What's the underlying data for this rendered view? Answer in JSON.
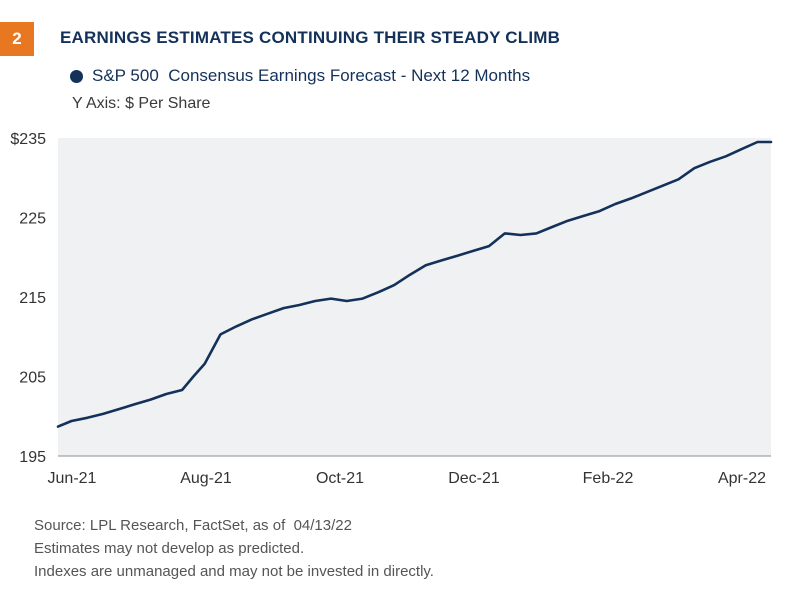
{
  "figure_number": "2",
  "title": "EARNINGS ESTIMATES CONTINUING THEIR STEADY CLIMB",
  "axis_note": "Y Axis: $ Per Share",
  "footnotes": [
    "Source: LPL Research, FactSet, as of  04/13/22",
    "Estimates may not develop as predicted.",
    "Indexes are unmanaged and may not be invested in directly."
  ],
  "colors": {
    "accent": "#e87722",
    "navy": "#14315a",
    "plot_bg": "#f0f1f3"
  },
  "chart_data": {
    "type": "line",
    "title": "EARNINGS ESTIMATES CONTINUING THEIR STEADY CLIMB",
    "ylabel": "$ Per Share",
    "ylim": [
      195,
      235
    ],
    "yticks": [
      195,
      205,
      215,
      225,
      235
    ],
    "ytick_labels": [
      "195",
      "205",
      "215",
      "225",
      "$235"
    ],
    "xticks": [
      "Jun-21",
      "Aug-21",
      "Oct-21",
      "Dec-21",
      "Feb-22",
      "Apr-22"
    ],
    "xrange": [
      "2021-06-01",
      "2022-04-13"
    ],
    "grid": false,
    "legend": "top-left",
    "series": [
      {
        "name": "S&P 500  Consensus Earnings Forecast - Next 12 Months",
        "color": "#14315a",
        "points": [
          [
            "2021-06-01",
            198.7
          ],
          [
            "2021-06-07",
            199.4
          ],
          [
            "2021-06-14",
            199.8
          ],
          [
            "2021-06-21",
            200.3
          ],
          [
            "2021-06-28",
            200.9
          ],
          [
            "2021-07-05",
            201.5
          ],
          [
            "2021-07-12",
            202.1
          ],
          [
            "2021-07-19",
            202.8
          ],
          [
            "2021-07-26",
            203.3
          ],
          [
            "2021-07-31",
            205.0
          ],
          [
            "2021-08-05",
            206.6
          ],
          [
            "2021-08-12",
            210.3
          ],
          [
            "2021-08-19",
            211.3
          ],
          [
            "2021-08-26",
            212.2
          ],
          [
            "2021-09-02",
            212.9
          ],
          [
            "2021-09-09",
            213.6
          ],
          [
            "2021-09-16",
            214.0
          ],
          [
            "2021-09-23",
            214.5
          ],
          [
            "2021-09-30",
            214.8
          ],
          [
            "2021-10-07",
            214.5
          ],
          [
            "2021-10-14",
            214.8
          ],
          [
            "2021-10-21",
            215.6
          ],
          [
            "2021-10-28",
            216.5
          ],
          [
            "2021-11-04",
            217.8
          ],
          [
            "2021-11-11",
            219.0
          ],
          [
            "2021-11-18",
            219.6
          ],
          [
            "2021-11-25",
            220.2
          ],
          [
            "2021-12-02",
            220.8
          ],
          [
            "2021-12-09",
            221.4
          ],
          [
            "2021-12-16",
            223.0
          ],
          [
            "2021-12-23",
            222.8
          ],
          [
            "2021-12-30",
            223.0
          ],
          [
            "2022-01-06",
            223.8
          ],
          [
            "2022-01-13",
            224.6
          ],
          [
            "2022-01-20",
            225.2
          ],
          [
            "2022-01-27",
            225.8
          ],
          [
            "2022-02-03",
            226.7
          ],
          [
            "2022-02-10",
            227.4
          ],
          [
            "2022-02-17",
            228.2
          ],
          [
            "2022-02-24",
            229.0
          ],
          [
            "2022-03-03",
            229.8
          ],
          [
            "2022-03-10",
            231.2
          ],
          [
            "2022-03-17",
            232.0
          ],
          [
            "2022-03-24",
            232.7
          ],
          [
            "2022-03-31",
            233.6
          ],
          [
            "2022-04-07",
            234.5
          ],
          [
            "2022-04-13",
            234.5
          ]
        ]
      }
    ]
  }
}
